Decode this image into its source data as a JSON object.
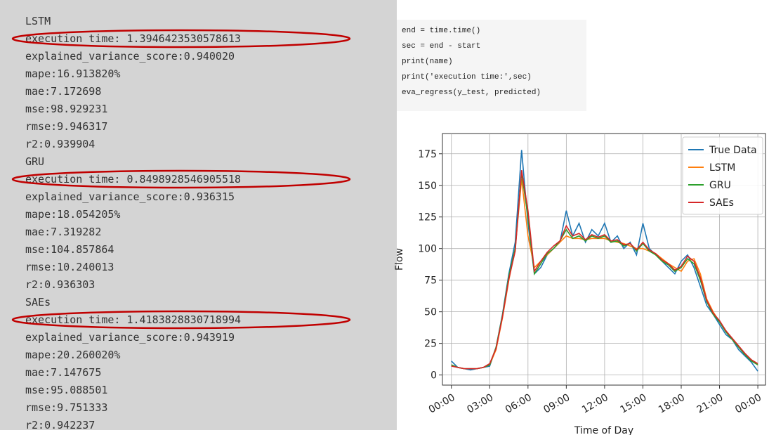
{
  "console": {
    "lines": [
      "LSTM",
      "execution time: 1.3946423530578613",
      "explained_variance_score:0.940020",
      "mape:16.913820%",
      "mae:7.172698",
      "mse:98.929231",
      "rmse:9.946317",
      "r2:0.939904",
      "GRU",
      "execution time: 0.8498928546905518",
      "explained_variance_score:0.936315",
      "mape:18.054205%",
      "mae:7.319282",
      "mse:104.857864",
      "rmse:10.240013",
      "r2:0.936303",
      "SAEs",
      "execution time: 1.4183828830718994",
      "explained_variance_score:0.943919",
      "mape:20.260020%",
      "mae:7.147675",
      "mse:95.088501",
      "rmse:9.751333",
      "r2:0.942237"
    ]
  },
  "code": {
    "lines": [
      "end = time.time()",
      "sec = end - start",
      "print(name)",
      "print('execution time:',sec)",
      "eva_regress(y_test, predicted)"
    ]
  },
  "chart_data": {
    "type": "line",
    "x_label": "Time of Day",
    "y_label": "Flow",
    "grid": true,
    "legend": "upper right",
    "x": [
      0,
      0.5,
      1,
      1.5,
      2,
      2.5,
      3,
      3.5,
      4,
      4.5,
      5,
      5.5,
      6,
      6.5,
      7,
      7.5,
      8,
      8.5,
      9,
      9.5,
      10,
      10.5,
      11,
      11.5,
      12,
      12.5,
      13,
      13.5,
      14,
      14.5,
      15,
      15.5,
      16,
      16.5,
      17,
      17.5,
      18,
      18.5,
      19,
      19.5,
      20,
      20.5,
      21,
      21.5,
      22,
      22.5,
      23,
      23.5,
      24
    ],
    "xlim": [
      -0.7,
      24.6
    ],
    "xticks": [
      {
        "value": 0,
        "label": "00:00"
      },
      {
        "value": 3,
        "label": "03:00"
      },
      {
        "value": 6,
        "label": "06:00"
      },
      {
        "value": 9,
        "label": "09:00"
      },
      {
        "value": 12,
        "label": "12:00"
      },
      {
        "value": 15,
        "label": "15:00"
      },
      {
        "value": 18,
        "label": "18:00"
      },
      {
        "value": 21,
        "label": "21:00"
      },
      {
        "value": 24,
        "label": "00:00"
      }
    ],
    "ylim": [
      -8,
      191
    ],
    "yticks": [
      0,
      25,
      50,
      75,
      100,
      125,
      150,
      175
    ],
    "series": [
      {
        "name": "True Data",
        "color": "#1f77b4",
        "values": [
          11,
          6,
          5,
          4,
          5,
          6,
          7,
          22,
          48,
          80,
          105,
          178,
          120,
          80,
          85,
          95,
          100,
          105,
          130,
          110,
          120,
          105,
          115,
          110,
          120,
          105,
          110,
          100,
          105,
          95,
          120,
          100,
          95,
          90,
          85,
          80,
          90,
          95,
          85,
          70,
          55,
          48,
          40,
          32,
          28,
          20,
          15,
          10,
          3
        ]
      },
      {
        "name": "LSTM",
        "color": "#ff7f0e",
        "values": [
          8,
          6,
          5,
          5,
          5,
          6,
          8,
          20,
          45,
          75,
          100,
          155,
          110,
          85,
          90,
          95,
          100,
          105,
          110,
          108,
          108,
          107,
          108,
          108,
          108,
          106,
          105,
          104,
          102,
          100,
          100,
          98,
          96,
          92,
          88,
          85,
          82,
          90,
          92,
          80,
          60,
          50,
          42,
          35,
          28,
          22,
          16,
          12,
          8
        ]
      },
      {
        "name": "GRU",
        "color": "#2ca02c",
        "values": [
          8,
          6,
          5,
          5,
          5,
          6,
          8,
          22,
          47,
          78,
          100,
          160,
          125,
          80,
          88,
          96,
          100,
          106,
          115,
          108,
          110,
          106,
          110,
          108,
          110,
          105,
          106,
          102,
          104,
          98,
          104,
          98,
          95,
          90,
          87,
          82,
          85,
          92,
          88,
          75,
          58,
          48,
          42,
          34,
          28,
          22,
          16,
          11,
          8
        ]
      },
      {
        "name": "SAEs",
        "color": "#d62728",
        "values": [
          7,
          6,
          5,
          5,
          5,
          6,
          9,
          21,
          46,
          76,
          98,
          162,
          130,
          82,
          90,
          97,
          102,
          106,
          118,
          110,
          112,
          107,
          111,
          109,
          111,
          106,
          107,
          103,
          104,
          99,
          105,
          99,
          96,
          91,
          88,
          83,
          86,
          94,
          90,
          77,
          59,
          49,
          43,
          35,
          29,
          23,
          17,
          12,
          9
        ]
      }
    ]
  }
}
